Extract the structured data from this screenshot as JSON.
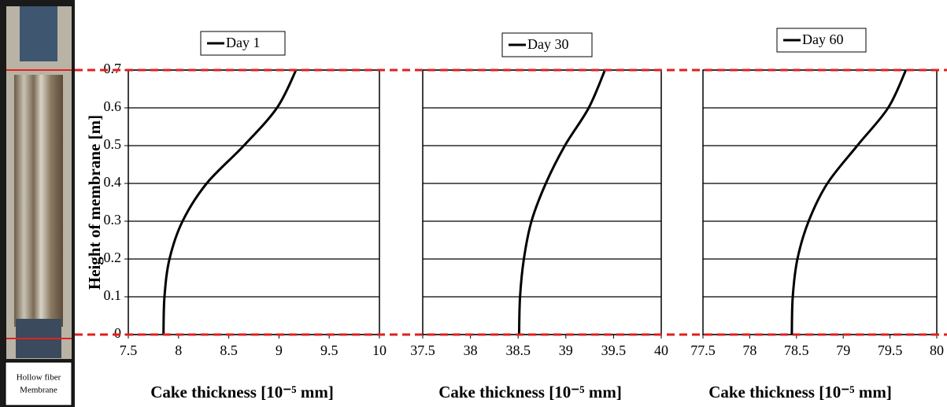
{
  "photo_caption": [
    "Hollow fiber",
    "Membrane"
  ],
  "chart_data": [
    {
      "type": "line",
      "y_label": "Height of membrane [m]",
      "x_label": "Cake thickness [10⁻⁵ mm]",
      "xlim": [
        7.5,
        10
      ],
      "xticks": [
        7.5,
        8,
        8.5,
        9,
        9.5,
        10
      ],
      "ylim": [
        0,
        0.7
      ],
      "yticks": [
        0,
        0.1,
        0.2,
        0.3,
        0.4,
        0.5,
        0.6,
        0.7
      ],
      "grid": true,
      "series": [
        {
          "name": "Day 1",
          "color": "#000000",
          "x": [
            7.85,
            7.86,
            7.91,
            8.04,
            8.28,
            8.65,
            8.98,
            9.17
          ],
          "values": [
            0,
            0.1,
            0.2,
            0.3,
            0.4,
            0.5,
            0.6,
            0.7
          ]
        }
      ]
    },
    {
      "type": "line",
      "x_label": "Cake thickness [10⁻⁵ mm]",
      "xlim": [
        37.5,
        40
      ],
      "xticks": [
        37.5,
        38,
        38.5,
        39,
        39.5,
        40
      ],
      "ylim": [
        0,
        0.7
      ],
      "yticks": [
        0,
        0.1,
        0.2,
        0.3,
        0.4,
        0.5,
        0.6,
        0.7
      ],
      "grid": true,
      "series": [
        {
          "name": "Day 30",
          "color": "#000000",
          "x": [
            38.51,
            38.52,
            38.56,
            38.64,
            38.79,
            38.99,
            39.24,
            39.41
          ],
          "values": [
            0,
            0.1,
            0.2,
            0.3,
            0.4,
            0.5,
            0.6,
            0.7
          ]
        }
      ]
    },
    {
      "type": "line",
      "x_label": "Cake thickness [10⁻⁵ mm]",
      "xlim": [
        77.5,
        80
      ],
      "xticks": [
        77.5,
        78,
        78.5,
        79,
        79.5,
        80
      ],
      "ylim": [
        0,
        0.7
      ],
      "yticks": [
        0,
        0.1,
        0.2,
        0.3,
        0.4,
        0.5,
        0.6,
        0.7
      ],
      "grid": true,
      "series": [
        {
          "name": "Day 60",
          "color": "#000000",
          "x": [
            78.45,
            78.46,
            78.51,
            78.63,
            78.83,
            79.15,
            79.48,
            79.67
          ],
          "values": [
            0,
            0.1,
            0.2,
            0.3,
            0.4,
            0.5,
            0.6,
            0.7
          ]
        }
      ]
    }
  ]
}
